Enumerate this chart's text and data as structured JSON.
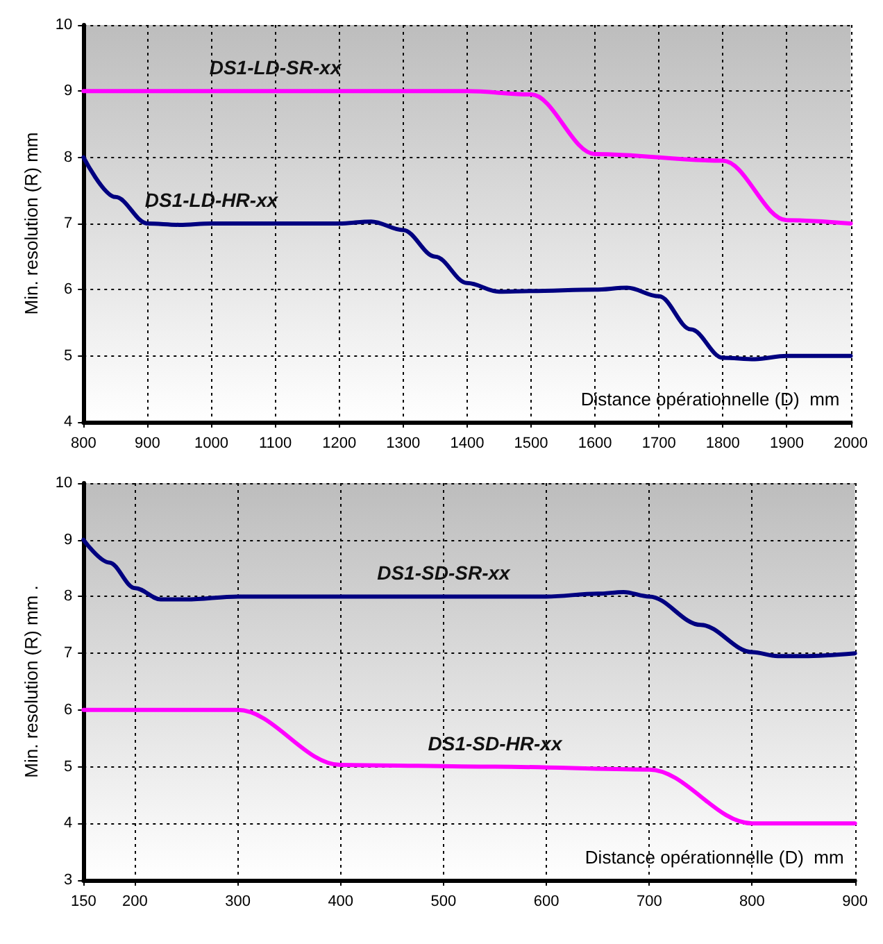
{
  "chart_data": [
    {
      "type": "line",
      "xlabel": "Distance opérationnelle (D)  mm",
      "ylabel": "Min. resolution (R) mm",
      "xlim": [
        800,
        2000
      ],
      "xticks": [
        800,
        900,
        1000,
        1100,
        1200,
        1300,
        1400,
        1500,
        1600,
        1700,
        1800,
        1900,
        2000
      ],
      "ylim": [
        4,
        10
      ],
      "yticks": [
        4,
        5,
        6,
        7,
        8,
        9,
        10
      ],
      "grid": true,
      "legend": false,
      "marker": "none",
      "line_style": "solid",
      "series": [
        {
          "name": "DS1-LD-SR-xx",
          "color": "#ff00ff",
          "x": [
            800,
            1100,
            1400,
            1500,
            1600,
            1800,
            1900,
            2000
          ],
          "values": [
            9,
            9,
            9,
            8.95,
            8.05,
            7.95,
            7.05,
            7
          ]
        },
        {
          "name": "DS1-LD-HR-xx",
          "color": "#000080",
          "x": [
            800,
            850,
            900,
            950,
            1000,
            1200,
            1250,
            1300,
            1350,
            1400,
            1450,
            1500,
            1600,
            1650,
            1700,
            1750,
            1800,
            1850,
            1900,
            2000
          ],
          "values": [
            8,
            7.4,
            7,
            6.98,
            7,
            7,
            7.03,
            6.9,
            6.5,
            6.1,
            5.97,
            5.98,
            6,
            6.03,
            5.9,
            5.4,
            4.97,
            4.95,
            5,
            5
          ]
        }
      ]
    },
    {
      "type": "line",
      "xlabel": "Distance opérationnelle (D)  mm",
      "ylabel": "Min. resolution (R) mm .",
      "xlim": [
        150,
        900
      ],
      "xticks": [
        150,
        200,
        300,
        400,
        500,
        600,
        700,
        800,
        900
      ],
      "ylim": [
        3,
        10
      ],
      "yticks": [
        3,
        4,
        5,
        6,
        7,
        8,
        9,
        10
      ],
      "grid": true,
      "legend": false,
      "marker": "none",
      "line_style": "solid",
      "series": [
        {
          "name": "DS1-SD-SR-xx",
          "color": "#000080",
          "x": [
            150,
            175,
            200,
            225,
            250,
            300,
            500,
            600,
            650,
            675,
            700,
            750,
            800,
            825,
            850,
            900
          ],
          "values": [
            9,
            8.6,
            8.15,
            7.95,
            7.95,
            8,
            8,
            8,
            8.05,
            8.08,
            8,
            7.5,
            7.02,
            6.95,
            6.95,
            7
          ]
        },
        {
          "name": "DS1-SD-HR-xx",
          "color": "#ff00ff",
          "x": [
            150,
            300,
            400,
            550,
            700,
            800,
            900
          ],
          "values": [
            6,
            6,
            5.03,
            5,
            4.95,
            4,
            4
          ]
        }
      ]
    }
  ]
}
